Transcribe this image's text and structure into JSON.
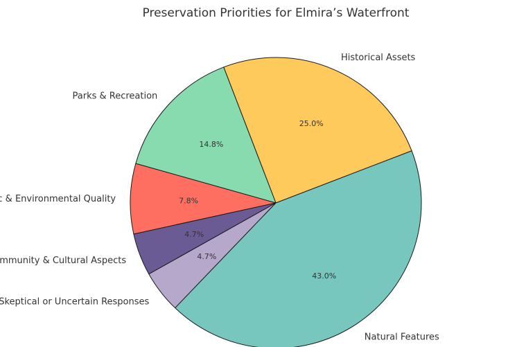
{
  "chart_data": {
    "type": "pie",
    "title": "Preservation Priorities for Elmira’s Waterfront",
    "slices": [
      {
        "label": "Historical Assets",
        "value": 25.0,
        "pct_label": "25.0%",
        "color": "#FFCA5C"
      },
      {
        "label": "Parks & Recreation",
        "value": 14.8,
        "pct_label": "14.8%",
        "color": "#88DAAF"
      },
      {
        "label": "Scenic & Environmental Quality",
        "value": 7.8,
        "pct_label": "7.8%",
        "color": "#FF6F61"
      },
      {
        "label": "Community & Cultural Aspects",
        "value": 4.7,
        "pct_label": "4.7%",
        "color": "#6B5B95"
      },
      {
        "label": "Skeptical or Uncertain Responses",
        "value": 4.7,
        "pct_label": "4.7%",
        "color": "#B6A8CA"
      },
      {
        "label": "Natural Features",
        "value": 43.0,
        "pct_label": "43.0%",
        "color": "#77C7BF"
      }
    ]
  }
}
